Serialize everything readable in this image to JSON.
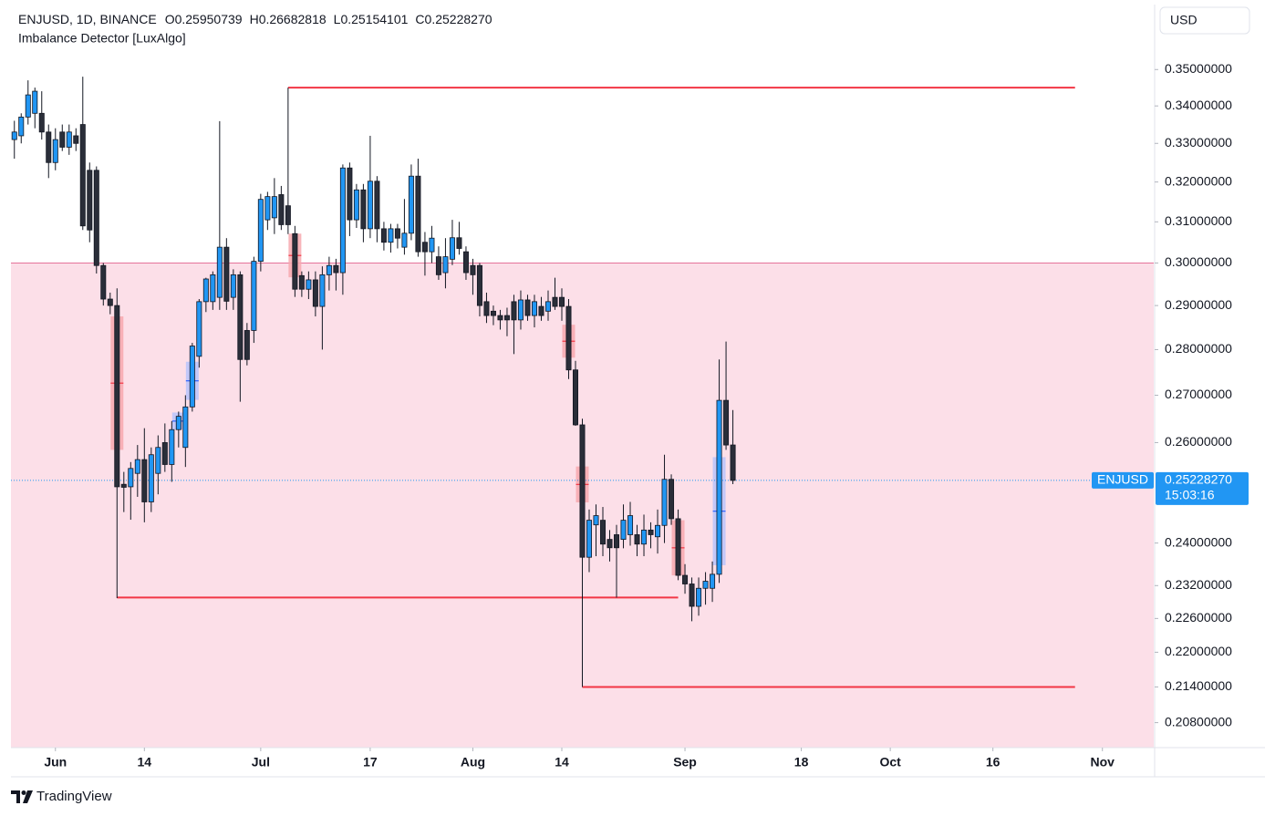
{
  "chart_data": {
    "type": "candlestick",
    "title": "ENJUSD, 1D, BINANCE",
    "subtitle": "Imbalance Detector [LuxAlgo]",
    "ohlc_legend": [
      {
        "key": "O",
        "text": "0.25950739"
      },
      {
        "key": "H",
        "text": "0.26682818"
      },
      {
        "key": "L",
        "text": "0.25154101"
      },
      {
        "key": "C",
        "text": "0.25228270"
      }
    ],
    "currency": "USD",
    "log_scale": true,
    "up_color": "#2196f3",
    "down_color": "#2a2e39",
    "wick_color": "#131722",
    "open": [
      0.331,
      0.332,
      0.337,
      0.338,
      0.338,
      0.333,
      0.325,
      0.333,
      0.329,
      0.332,
      0.335,
      0.323,
      0.323,
      0.2994,
      0.2915,
      0.29,
      0.2515,
      0.251,
      0.2537,
      0.2565,
      0.248,
      0.2537,
      0.26,
      0.2555,
      0.2627,
      0.259,
      0.2675,
      0.2785,
      0.2909,
      0.2909,
      0.2919,
      0.3038,
      0.2919,
      0.2972,
      0.2843,
      0.2843,
      0.3004,
      0.3105,
      0.311,
      0.3168,
      0.314,
      0.3071,
      0.297,
      0.2938,
      0.296,
      0.2898,
      0.2972,
      0.2994,
      0.2977,
      0.3236,
      0.3105,
      0.318,
      0.3083,
      0.3202,
      0.3083,
      0.305,
      0.3083,
      0.3038,
      0.3072,
      0.3215,
      0.305,
      0.3027,
      0.3015,
      0.2977,
      0.3009,
      0.3061,
      0.3027,
      0.2994,
      0.2994,
      0.2909,
      0.2887,
      0.2877,
      0.2877,
      0.2909,
      0.2867,
      0.2913,
      0.2877,
      0.2898,
      0.2887,
      0.2919,
      0.2919,
      0.2898,
      0.2755,
      0.2637,
      0.2373,
      0.2435,
      0.2444,
      0.2407,
      0.2416,
      0.2407,
      0.2416,
      0.2416,
      0.2398,
      0.2425,
      0.2412,
      0.2434,
      0.2525,
      0.2447,
      0.2339,
      0.2323,
      0.2282,
      0.2315,
      0.2315,
      0.2341,
      0.2689,
      0.25950739
    ],
    "high": [
      0.336,
      0.338,
      0.347,
      0.345,
      0.344,
      0.335,
      0.334,
      0.335,
      0.335,
      0.334,
      0.348,
      0.325,
      0.324,
      0.3,
      0.293,
      0.294,
      0.254,
      0.256,
      0.2595,
      0.263,
      0.259,
      0.2615,
      0.264,
      0.2645,
      0.2665,
      0.27,
      0.2815,
      0.2915,
      0.2965,
      0.298,
      0.3359,
      0.306,
      0.2985,
      0.298,
      0.286,
      0.3015,
      0.317,
      0.3175,
      0.321,
      0.319,
      0.345,
      0.309,
      0.298,
      0.298,
      0.298,
      0.2992,
      0.3015,
      0.301,
      0.3245,
      0.325,
      0.3195,
      0.3195,
      0.332,
      0.3215,
      0.31,
      0.3095,
      0.3095,
      0.3157,
      0.3245,
      0.326,
      0.3075,
      0.309,
      0.304,
      0.306,
      0.3105,
      0.31,
      0.304,
      0.301,
      0.3,
      0.293,
      0.29,
      0.289,
      0.2895,
      0.2925,
      0.2935,
      0.2925,
      0.2925,
      0.292,
      0.2935,
      0.2965,
      0.294,
      0.2915,
      0.2775,
      0.265,
      0.2465,
      0.2475,
      0.247,
      0.2425,
      0.2435,
      0.2475,
      0.248,
      0.2435,
      0.2455,
      0.244,
      0.2465,
      0.2575,
      0.2535,
      0.2465,
      0.236,
      0.2335,
      0.2335,
      0.2345,
      0.2365,
      0.2778,
      0.2818,
      0.26682818
    ],
    "low": [
      0.326,
      0.33,
      0.335,
      0.334,
      0.331,
      0.321,
      0.323,
      0.328,
      0.327,
      0.328,
      0.308,
      0.305,
      0.2975,
      0.29,
      0.288,
      0.2297,
      0.246,
      0.2445,
      0.249,
      0.244,
      0.246,
      0.2495,
      0.254,
      0.252,
      0.259,
      0.255,
      0.2665,
      0.276,
      0.2885,
      0.289,
      0.289,
      0.289,
      0.289,
      0.2686,
      0.2765,
      0.2815,
      0.298,
      0.308,
      0.307,
      0.308,
      0.307,
      0.292,
      0.292,
      0.2915,
      0.2875,
      0.28,
      0.2935,
      0.2935,
      0.2925,
      0.3065,
      0.3085,
      0.305,
      0.306,
      0.305,
      0.303,
      0.3025,
      0.3035,
      0.302,
      0.3055,
      0.3015,
      0.297,
      0.3,
      0.296,
      0.294,
      0.2995,
      0.302,
      0.296,
      0.2925,
      0.2875,
      0.286,
      0.2855,
      0.2845,
      0.283,
      0.279,
      0.2845,
      0.2865,
      0.285,
      0.2865,
      0.2865,
      0.289,
      0.2865,
      0.2735,
      0.2635,
      0.214,
      0.2345,
      0.2375,
      0.2375,
      0.2365,
      0.2298,
      0.239,
      0.2395,
      0.2375,
      0.2375,
      0.239,
      0.238,
      0.24,
      0.2435,
      0.233,
      0.2305,
      0.2255,
      0.2265,
      0.2285,
      0.229,
      0.2325,
      0.2585,
      0.25154101
    ],
    "close": [
      0.333,
      0.337,
      0.343,
      0.344,
      0.333,
      0.325,
      0.331,
      0.329,
      0.333,
      0.33,
      0.309,
      0.308,
      0.2994,
      0.2915,
      0.29,
      0.251,
      0.2509,
      0.2547,
      0.2565,
      0.248,
      0.2575,
      0.259,
      0.2555,
      0.2627,
      0.2655,
      0.2675,
      0.2808,
      0.2909,
      0.2962,
      0.2972,
      0.3038,
      0.291,
      0.2972,
      0.2778,
      0.2778,
      0.3004,
      0.3156,
      0.3163,
      0.3163,
      0.3093,
      0.3093,
      0.2938,
      0.2938,
      0.296,
      0.2898,
      0.2972,
      0.2994,
      0.2977,
      0.3236,
      0.3105,
      0.318,
      0.3083,
      0.3202,
      0.3083,
      0.305,
      0.3083,
      0.306,
      0.3072,
      0.3215,
      0.3027,
      0.3027,
      0.306,
      0.2972,
      0.3015,
      0.3061,
      0.3035,
      0.2977,
      0.2972,
      0.29,
      0.2877,
      0.2877,
      0.2867,
      0.2867,
      0.2867,
      0.2913,
      0.2877,
      0.2909,
      0.2877,
      0.2909,
      0.2898,
      0.2898,
      0.2755,
      0.2637,
      0.2373,
      0.2444,
      0.2453,
      0.2398,
      0.2391,
      0.2391,
      0.2444,
      0.2453,
      0.2398,
      0.2425,
      0.2416,
      0.2434,
      0.2525,
      0.2447,
      0.2339,
      0.2323,
      0.2282,
      0.2315,
      0.2328,
      0.2341,
      0.2689,
      0.2595,
      0.2522827
    ],
    "xlim": [
      -0.5,
      166.5
    ],
    "xticks": [
      {
        "value": 6,
        "label": "Jun"
      },
      {
        "value": 19,
        "label": "14"
      },
      {
        "value": 36,
        "label": "Jul"
      },
      {
        "value": 52,
        "label": "17"
      },
      {
        "value": 67,
        "label": "Aug"
      },
      {
        "value": 80,
        "label": "14"
      },
      {
        "value": 98,
        "label": "Sep"
      },
      {
        "value": 115,
        "label": "18"
      },
      {
        "value": 128,
        "label": "Oct"
      },
      {
        "value": 143,
        "label": "16"
      },
      {
        "value": 159,
        "label": "Nov"
      }
    ],
    "ylim": [
      0.2039,
      0.3686
    ],
    "yticks": [
      {
        "value": 0.35,
        "label": "0.35000000"
      },
      {
        "value": 0.34,
        "label": "0.34000000"
      },
      {
        "value": 0.33,
        "label": "0.33000000"
      },
      {
        "value": 0.32,
        "label": "0.32000000"
      },
      {
        "value": 0.31,
        "label": "0.31000000"
      },
      {
        "value": 0.3,
        "label": "0.30000000"
      },
      {
        "value": 0.29,
        "label": "0.29000000"
      },
      {
        "value": 0.28,
        "label": "0.28000000"
      },
      {
        "value": 0.27,
        "label": "0.27000000"
      },
      {
        "value": 0.26,
        "label": "0.26000000"
      },
      {
        "value": 0.24,
        "label": "0.24000000"
      },
      {
        "value": 0.232,
        "label": "0.23200000"
      },
      {
        "value": 0.226,
        "label": "0.22600000"
      },
      {
        "value": 0.22,
        "label": "0.22000000"
      },
      {
        "value": 0.214,
        "label": "0.21400000"
      },
      {
        "value": 0.208,
        "label": "0.20800000"
      }
    ],
    "zone": {
      "top": 0.3,
      "color": "#fcdfe8",
      "line_color": "#e57399"
    },
    "levels": [
      {
        "value": 0.345,
        "from": 40,
        "to": 155
      },
      {
        "value": 0.2298,
        "from": 15,
        "to": 97
      },
      {
        "value": 0.214,
        "from": 83,
        "to": 155
      }
    ],
    "level_color": "#f23645",
    "bear_color": "#f7a8ae",
    "bull_color": "#b9c4fb",
    "imbalances": [
      {
        "candle": 15,
        "top": 0.2875,
        "bottom": 0.2585,
        "side": "bear"
      },
      {
        "candle": 41,
        "top": 0.3071,
        "bottom": 0.2966,
        "side": "bear"
      },
      {
        "candle": 81,
        "top": 0.2856,
        "bottom": 0.2782,
        "side": "bear"
      },
      {
        "candle": 83,
        "top": 0.2551,
        "bottom": 0.2479,
        "side": "bear"
      },
      {
        "candle": 97,
        "top": 0.2444,
        "bottom": 0.2339,
        "side": "bear"
      },
      {
        "candle": 24,
        "top": 0.2663,
        "bottom": 0.2627,
        "side": "bull"
      },
      {
        "candle": 26,
        "top": 0.2773,
        "bottom": 0.269,
        "side": "bull"
      },
      {
        "candle": 103,
        "top": 0.257,
        "bottom": 0.2358,
        "side": "bull"
      }
    ],
    "last_price": {
      "symbol": "ENJUSD",
      "value": 0.2522827,
      "label": "0.25228270",
      "countdown": "15:03:16",
      "color": "#2196f3"
    }
  },
  "footer": {
    "brand": "TradingView"
  }
}
